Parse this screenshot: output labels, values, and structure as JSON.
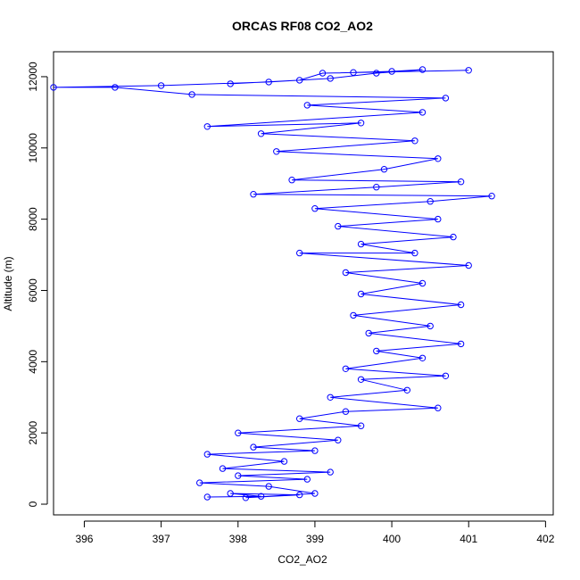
{
  "chart_data": {
    "type": "scatter",
    "title": "ORCAS RF08 CO2_AO2",
    "xlabel": "CO2_AO2",
    "ylabel": "Altitude (m)",
    "xlim": [
      395.6,
      402.1
    ],
    "ylim": [
      -300,
      12700
    ],
    "xticks": [
      396,
      397,
      398,
      399,
      400,
      401,
      402
    ],
    "yticks": [
      0,
      2000,
      4000,
      6000,
      8000,
      10000,
      12000
    ],
    "grid": false,
    "legend": "none",
    "series_color": "#0000ff",
    "marker": "open-circle-with-connecting-line",
    "series": [
      {
        "values": [
          [
            397.6,
            200
          ],
          [
            398.3,
            220
          ],
          [
            397.9,
            300
          ],
          [
            398.8,
            260
          ],
          [
            398.1,
            180
          ],
          [
            399.0,
            300
          ],
          [
            398.4,
            500
          ],
          [
            397.5,
            600
          ],
          [
            398.9,
            700
          ],
          [
            398.0,
            800
          ],
          [
            399.2,
            900
          ],
          [
            397.8,
            1000
          ],
          [
            398.6,
            1200
          ],
          [
            397.6,
            1400
          ],
          [
            399.0,
            1500
          ],
          [
            398.2,
            1600
          ],
          [
            399.3,
            1800
          ],
          [
            398.0,
            2000
          ],
          [
            399.6,
            2200
          ],
          [
            398.8,
            2400
          ],
          [
            399.4,
            2600
          ],
          [
            400.6,
            2700
          ],
          [
            399.2,
            3000
          ],
          [
            400.2,
            3200
          ],
          [
            399.6,
            3500
          ],
          [
            400.7,
            3600
          ],
          [
            399.4,
            3800
          ],
          [
            400.4,
            4100
          ],
          [
            399.8,
            4300
          ],
          [
            400.9,
            4500
          ],
          [
            399.7,
            4800
          ],
          [
            400.5,
            5000
          ],
          [
            399.5,
            5300
          ],
          [
            400.9,
            5600
          ],
          [
            399.6,
            5900
          ],
          [
            400.4,
            6200
          ],
          [
            399.4,
            6500
          ],
          [
            401.0,
            6700
          ],
          [
            398.8,
            7050
          ],
          [
            400.3,
            7050
          ],
          [
            399.6,
            7300
          ],
          [
            400.8,
            7500
          ],
          [
            399.3,
            7800
          ],
          [
            400.6,
            8000
          ],
          [
            399.0,
            8300
          ],
          [
            400.5,
            8500
          ],
          [
            401.3,
            8650
          ],
          [
            398.2,
            8700
          ],
          [
            399.8,
            8900
          ],
          [
            400.9,
            9050
          ],
          [
            398.7,
            9100
          ],
          [
            399.9,
            9400
          ],
          [
            400.6,
            9700
          ],
          [
            398.5,
            9900
          ],
          [
            400.3,
            10200
          ],
          [
            398.3,
            10400
          ],
          [
            399.6,
            10700
          ],
          [
            397.6,
            10600
          ],
          [
            400.4,
            11000
          ],
          [
            398.9,
            11200
          ],
          [
            400.7,
            11400
          ],
          [
            397.4,
            11500
          ],
          [
            396.4,
            11700
          ],
          [
            395.6,
            11700
          ],
          [
            397.0,
            11750
          ],
          [
            398.4,
            11850
          ],
          [
            399.2,
            11950
          ],
          [
            399.8,
            12100
          ],
          [
            400.4,
            12200
          ],
          [
            400.0,
            12150
          ],
          [
            399.5,
            12120
          ],
          [
            401.0,
            12180
          ],
          [
            399.1,
            12100
          ],
          [
            398.8,
            11900
          ],
          [
            397.9,
            11800
          ]
        ]
      }
    ]
  }
}
